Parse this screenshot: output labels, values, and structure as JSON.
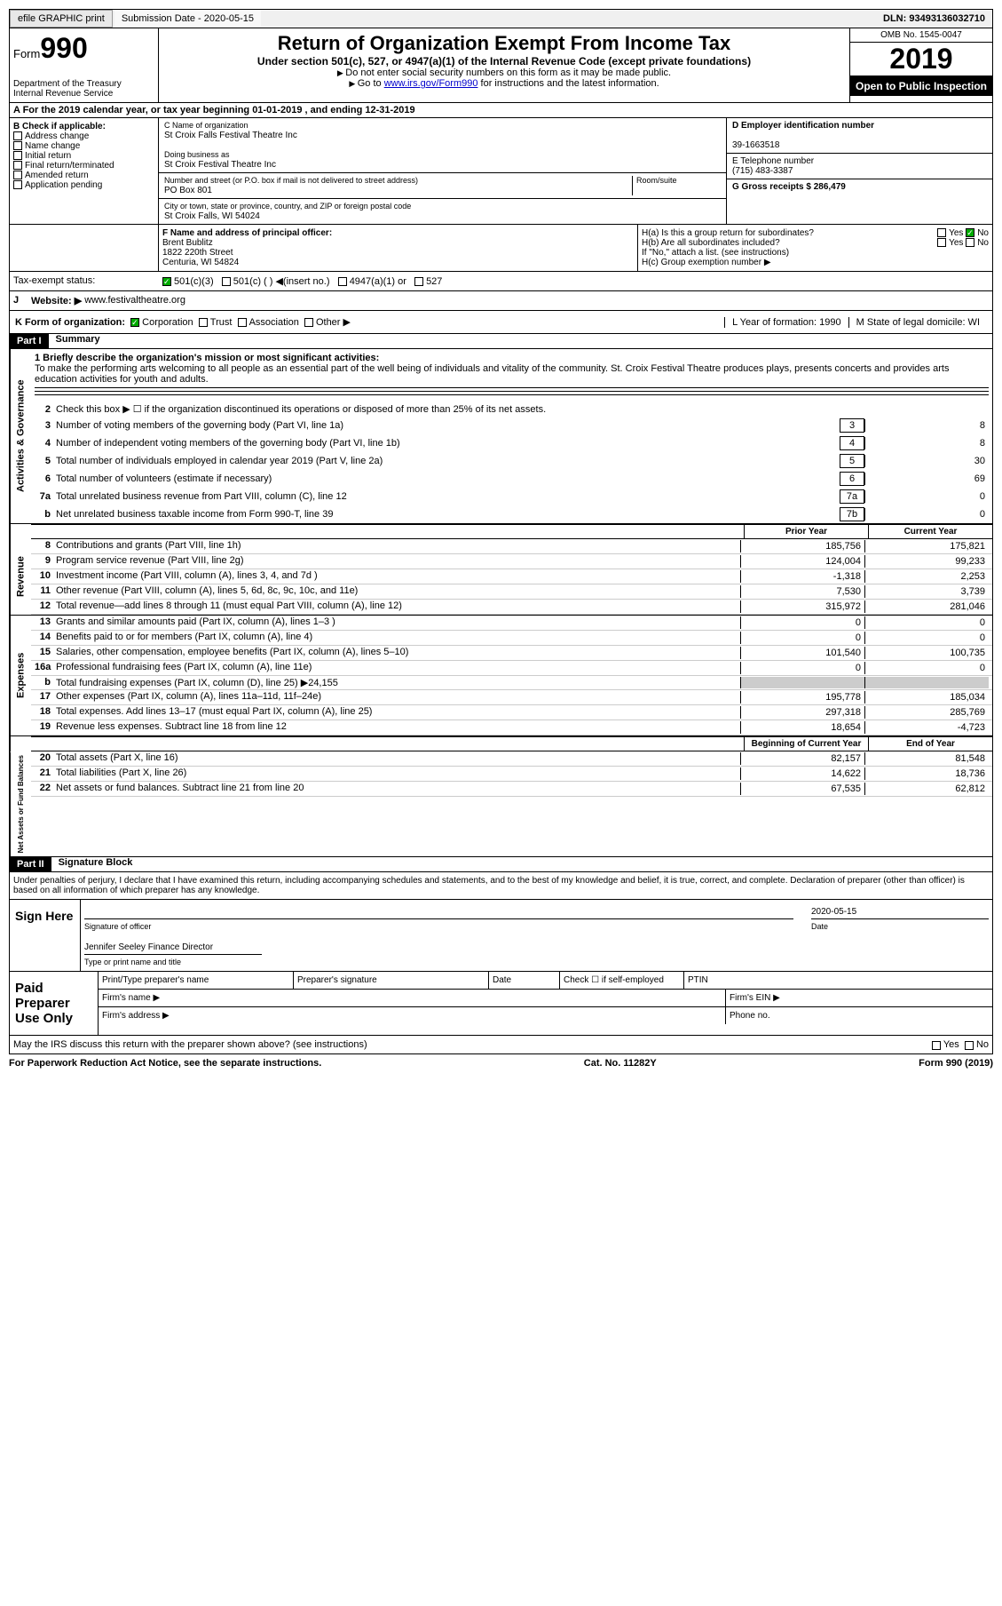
{
  "header": {
    "efile": "efile GRAPHIC print",
    "submission": "Submission Date - 2020-05-15",
    "dln": "DLN: 93493136032710"
  },
  "form": {
    "form_label": "Form",
    "form_no": "990",
    "dept1": "Department of the Treasury",
    "dept2": "Internal Revenue Service",
    "title": "Return of Organization Exempt From Income Tax",
    "sub1": "Under section 501(c), 527, or 4947(a)(1) of the Internal Revenue Code (except private foundations)",
    "sub2": "Do not enter social security numbers on this form as it may be made public.",
    "sub3_pre": "Go to ",
    "sub3_link": "www.irs.gov/Form990",
    "sub3_post": " for instructions and the latest information.",
    "omb": "OMB No. 1545-0047",
    "year": "2019",
    "inspect": "Open to Public Inspection"
  },
  "rowA": "A For the 2019 calendar year, or tax year beginning 01-01-2019   , and ending 12-31-2019",
  "colB": {
    "hdr": "B Check if applicable:",
    "items": [
      "Address change",
      "Name change",
      "Initial return",
      "Final return/terminated",
      "Amended return",
      "Application pending"
    ]
  },
  "colC": {
    "name_lbl": "C Name of organization",
    "name": "St Croix Falls Festival Theatre Inc",
    "dba_lbl": "Doing business as",
    "dba": "St Croix Festival Theatre Inc",
    "addr_lbl": "Number and street (or P.O. box if mail is not delivered to street address)",
    "room": "Room/suite",
    "addr": "PO Box 801",
    "city_lbl": "City or town, state or province, country, and ZIP or foreign postal code",
    "city": "St Croix Falls, WI  54024"
  },
  "colD": {
    "ein_lbl": "D Employer identification number",
    "ein": "39-1663518",
    "phone_lbl": "E Telephone number",
    "phone": "(715) 483-3387",
    "gross_lbl": "G Gross receipts $ 286,479"
  },
  "rowF": {
    "lbl": "F  Name and address of principal officer:",
    "name": "Brent Bublitz",
    "addr1": "1822 220th Street",
    "addr2": "Centuria, WI  54824"
  },
  "rowH": {
    "a": "H(a)  Is this a group return for subordinates?",
    "b": "H(b)  Are all subordinates included?",
    "note": "If \"No,\" attach a list. (see instructions)",
    "c": "H(c)  Group exemption number ▶",
    "yes": "Yes",
    "no": "No"
  },
  "rowI": {
    "lbl": "Tax-exempt status:",
    "opts": [
      "501(c)(3)",
      "501(c) (  ) ◀(insert no.)",
      "4947(a)(1) or",
      "527"
    ]
  },
  "rowJ": {
    "lbl": "J",
    "txt": "Website: ▶",
    "url": "www.festivaltheatre.org"
  },
  "rowK": {
    "lbl": "K Form of organization:",
    "opts": [
      "Corporation",
      "Trust",
      "Association",
      "Other ▶"
    ],
    "L": "L Year of formation: 1990",
    "M": "M State of legal domicile: WI"
  },
  "part1": {
    "tag": "Part I",
    "title": "Summary"
  },
  "summary": {
    "l1_lbl": "1  Briefly describe the organization's mission or most significant activities:",
    "l1_txt": "To make the performing arts welcoming to all people as an essential part of the well being of individuals and vitality of the community. St. Croix Festival Theatre produces plays, presents concerts and provides arts education activities for youth and adults.",
    "l2": "Check this box ▶ ☐  if the organization discontinued its operations or disposed of more than 25% of its net assets.",
    "lines_box": [
      {
        "n": "3",
        "t": "Number of voting members of the governing body (Part VI, line 1a)",
        "b": "3",
        "v": "8"
      },
      {
        "n": "4",
        "t": "Number of independent voting members of the governing body (Part VI, line 1b)",
        "b": "4",
        "v": "8"
      },
      {
        "n": "5",
        "t": "Total number of individuals employed in calendar year 2019 (Part V, line 2a)",
        "b": "5",
        "v": "30"
      },
      {
        "n": "6",
        "t": "Total number of volunteers (estimate if necessary)",
        "b": "6",
        "v": "69"
      },
      {
        "n": "7a",
        "t": "Total unrelated business revenue from Part VIII, column (C), line 12",
        "b": "7a",
        "v": "0"
      },
      {
        "n": "b",
        "t": "Net unrelated business taxable income from Form 990-T, line 39",
        "b": "7b",
        "v": "0"
      }
    ],
    "hdr_prior": "Prior Year",
    "hdr_curr": "Current Year",
    "revenue": [
      {
        "n": "8",
        "t": "Contributions and grants (Part VIII, line 1h)",
        "p": "185,756",
        "c": "175,821"
      },
      {
        "n": "9",
        "t": "Program service revenue (Part VIII, line 2g)",
        "p": "124,004",
        "c": "99,233"
      },
      {
        "n": "10",
        "t": "Investment income (Part VIII, column (A), lines 3, 4, and 7d )",
        "p": "-1,318",
        "c": "2,253"
      },
      {
        "n": "11",
        "t": "Other revenue (Part VIII, column (A), lines 5, 6d, 8c, 9c, 10c, and 11e)",
        "p": "7,530",
        "c": "3,739"
      },
      {
        "n": "12",
        "t": "Total revenue—add lines 8 through 11 (must equal Part VIII, column (A), line 12)",
        "p": "315,972",
        "c": "281,046"
      }
    ],
    "expenses": [
      {
        "n": "13",
        "t": "Grants and similar amounts paid (Part IX, column (A), lines 1–3 )",
        "p": "0",
        "c": "0"
      },
      {
        "n": "14",
        "t": "Benefits paid to or for members (Part IX, column (A), line 4)",
        "p": "0",
        "c": "0"
      },
      {
        "n": "15",
        "t": "Salaries, other compensation, employee benefits (Part IX, column (A), lines 5–10)",
        "p": "101,540",
        "c": "100,735"
      },
      {
        "n": "16a",
        "t": "Professional fundraising fees (Part IX, column (A), line 11e)",
        "p": "0",
        "c": "0"
      },
      {
        "n": "b",
        "t": "Total fundraising expenses (Part IX, column (D), line 25) ▶24,155",
        "p": "",
        "c": "",
        "gray": true
      },
      {
        "n": "17",
        "t": "Other expenses (Part IX, column (A), lines 11a–11d, 11f–24e)",
        "p": "195,778",
        "c": "185,034"
      },
      {
        "n": "18",
        "t": "Total expenses. Add lines 13–17 (must equal Part IX, column (A), line 25)",
        "p": "297,318",
        "c": "285,769"
      },
      {
        "n": "19",
        "t": "Revenue less expenses. Subtract line 18 from line 12",
        "p": "18,654",
        "c": "-4,723"
      }
    ],
    "hdr_beg": "Beginning of Current Year",
    "hdr_end": "End of Year",
    "netassets": [
      {
        "n": "20",
        "t": "Total assets (Part X, line 16)",
        "p": "82,157",
        "c": "81,548"
      },
      {
        "n": "21",
        "t": "Total liabilities (Part X, line 26)",
        "p": "14,622",
        "c": "18,736"
      },
      {
        "n": "22",
        "t": "Net assets or fund balances. Subtract line 21 from line 20",
        "p": "67,535",
        "c": "62,812"
      }
    ]
  },
  "labels": {
    "ag": "Activities & Governance",
    "rev": "Revenue",
    "exp": "Expenses",
    "na": "Net Assets or Fund Balances"
  },
  "part2": {
    "tag": "Part II",
    "title": "Signature Block"
  },
  "sig": {
    "decl": "Under penalties of perjury, I declare that I have examined this return, including accompanying schedules and statements, and to the best of my knowledge and belief, it is true, correct, and complete. Declaration of preparer (other than officer) is based on all information of which preparer has any knowledge.",
    "sign_here": "Sign Here",
    "sig_of": "Signature of officer",
    "date_lbl": "Date",
    "date": "2020-05-15",
    "name": "Jennifer Seeley Finance Director",
    "type_lbl": "Type or print name and title",
    "paid": "Paid Preparer Use Only",
    "prep_name": "Print/Type preparer's name",
    "prep_sig": "Preparer's signature",
    "prep_date": "Date",
    "self_emp": "Check ☐ if self-employed",
    "ptin": "PTIN",
    "firm_name": "Firm's name   ▶",
    "firm_ein": "Firm's EIN ▶",
    "firm_addr": "Firm's address ▶",
    "phone": "Phone no.",
    "discuss": "May the IRS discuss this return with the preparer shown above? (see instructions)"
  },
  "footer": {
    "pra": "For Paperwork Reduction Act Notice, see the separate instructions.",
    "cat": "Cat. No. 11282Y",
    "form": "Form 990 (2019)"
  }
}
